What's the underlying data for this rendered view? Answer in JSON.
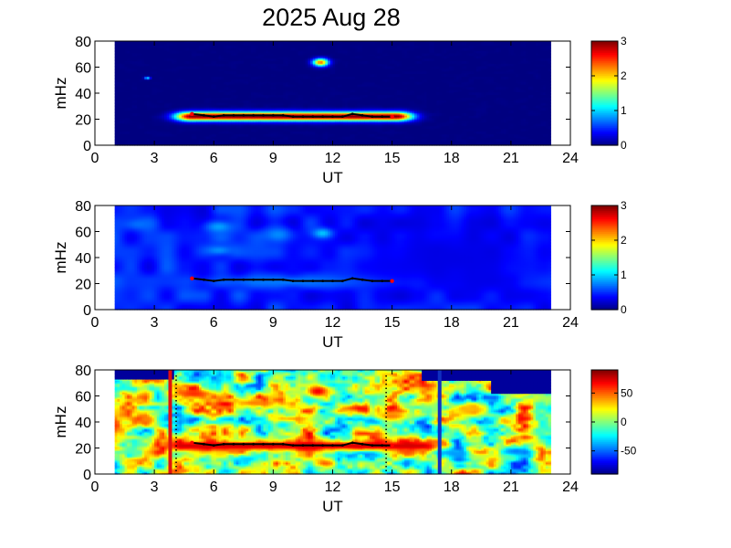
{
  "title": "2025 Aug 28",
  "colors": {
    "background": "#ffffff",
    "axes": "#000000",
    "trace": "#000000",
    "trace_endpoint": "#ff0000",
    "marker_red": "#e01010",
    "marker_blue": "#1030c0"
  },
  "chart_data": [
    {
      "type": "heatmap",
      "title": "2025 Aug 28",
      "xlabel": "UT",
      "ylabel": "mHz",
      "xlim": [
        0,
        24
      ],
      "ylim": [
        0,
        80
      ],
      "xticks": [
        0,
        3,
        6,
        9,
        12,
        15,
        18,
        21,
        24
      ],
      "yticks": [
        0,
        20,
        40,
        60,
        80
      ],
      "data_x_range": [
        1,
        23
      ],
      "colormap": "jet",
      "colorbar": {
        "min": 0,
        "max": 3,
        "ticks": [
          0,
          1,
          2,
          3
        ],
        "tick_labels": [
          "0",
          "1",
          "2",
          "3"
        ]
      },
      "background_level": 0,
      "features": [
        {
          "kind": "band",
          "x": [
            4.9,
            15.2
          ],
          "y_center": 22.5,
          "y_halfwidth": 3.5,
          "level": 3
        },
        {
          "kind": "blob",
          "x": [
            11.0,
            11.8
          ],
          "y_center": 64,
          "y_halfwidth": 3,
          "level": 2.3
        },
        {
          "kind": "blob",
          "x": [
            2.5,
            2.8
          ],
          "y_center": 52,
          "y_halfwidth": 1,
          "level": 1.2
        }
      ],
      "trace": {
        "x": [
          4.9,
          5.5,
          6.0,
          6.5,
          7.0,
          7.5,
          8.0,
          8.5,
          9.0,
          9.5,
          10.0,
          10.5,
          11.0,
          11.5,
          12.0,
          12.5,
          13.0,
          13.5,
          14.0,
          14.5,
          15.0
        ],
        "y": [
          24,
          23,
          22,
          23,
          23,
          23,
          23,
          23,
          23,
          23,
          22,
          22,
          22,
          22,
          22,
          22,
          24,
          23,
          22,
          22,
          22
        ]
      }
    },
    {
      "type": "heatmap",
      "xlabel": "UT",
      "ylabel": "mHz",
      "xlim": [
        0,
        24
      ],
      "ylim": [
        0,
        80
      ],
      "xticks": [
        0,
        3,
        6,
        9,
        12,
        15,
        18,
        21,
        24
      ],
      "yticks": [
        0,
        20,
        40,
        60,
        80
      ],
      "data_x_range": [
        1,
        23
      ],
      "colormap": "jet",
      "colorbar": {
        "min": 0,
        "max": 3,
        "ticks": [
          0,
          1,
          2,
          3
        ],
        "tick_labels": [
          "0",
          "1",
          "2",
          "3"
        ]
      },
      "background_level": 0.45,
      "features": [
        {
          "kind": "blob",
          "x": [
            11.0,
            12.0
          ],
          "y_center": 59,
          "y_halfwidth": 4,
          "level": 1.05
        },
        {
          "kind": "blob",
          "x": [
            5.5,
            7.0
          ],
          "y_center": 64,
          "y_halfwidth": 5,
          "level": 0.85
        },
        {
          "kind": "blob",
          "x": [
            5.5,
            7.0
          ],
          "y_center": 46,
          "y_halfwidth": 4,
          "level": 0.8
        },
        {
          "kind": "blob",
          "x": [
            8.5,
            10.0
          ],
          "y_center": 58,
          "y_halfwidth": 6,
          "level": 0.8
        },
        {
          "kind": "blob",
          "x": [
            1.5,
            3.0
          ],
          "y_center": 66,
          "y_halfwidth": 4,
          "level": 0.7
        },
        {
          "kind": "blob",
          "x": [
            5.0,
            15.5
          ],
          "y_center": 22,
          "y_halfwidth": 5,
          "level": 0.75
        },
        {
          "kind": "blob",
          "x": [
            13.0,
            23.0
          ],
          "y_center": 40,
          "y_halfwidth": 30,
          "level": 0.3
        }
      ],
      "trace": {
        "x": [
          4.9,
          5.5,
          6.0,
          6.5,
          7.0,
          7.5,
          8.0,
          8.5,
          9.0,
          9.5,
          10.0,
          10.5,
          11.0,
          11.5,
          12.0,
          12.5,
          13.0,
          13.5,
          14.0,
          14.5,
          15.0
        ],
        "y": [
          24,
          23,
          22,
          23,
          23,
          23,
          23,
          23,
          23,
          23,
          22,
          22,
          22,
          22,
          22,
          22,
          24,
          23,
          22,
          22,
          22
        ]
      }
    },
    {
      "type": "heatmap",
      "xlabel": "UT",
      "ylabel": "mHz",
      "xlim": [
        0,
        24
      ],
      "ylim": [
        0,
        80
      ],
      "xticks": [
        0,
        3,
        6,
        9,
        12,
        15,
        18,
        21,
        24
      ],
      "yticks": [
        0,
        20,
        40,
        60,
        80
      ],
      "data_x_range": [
        1,
        23
      ],
      "colormap": "jet",
      "colorbar": {
        "min": -90,
        "max": 90,
        "ticks": [
          50,
          0,
          -50
        ],
        "tick_labels": [
          "50",
          "0",
          "-50"
        ]
      },
      "background_level": 5,
      "features": [
        {
          "kind": "band",
          "x": [
            4.5,
            16.5
          ],
          "y_center": 22,
          "y_halfwidth": 4,
          "level": 75
        },
        {
          "kind": "blob",
          "x": [
            10.5,
            12.0
          ],
          "y_center": 64,
          "y_halfwidth": 6,
          "level": 70
        },
        {
          "kind": "blob",
          "x": [
            4.0,
            6.0
          ],
          "y_center": 62,
          "y_halfwidth": 4,
          "level": 60
        },
        {
          "kind": "blob",
          "x": [
            7.0,
            9.0
          ],
          "y_center": 55,
          "y_halfwidth": 3,
          "level": 45
        },
        {
          "kind": "blob",
          "x": [
            14.0,
            16.0
          ],
          "y_center": 45,
          "y_halfwidth": 4,
          "level": 45
        },
        {
          "kind": "blob",
          "x": [
            2.0,
            3.2
          ],
          "y_center": 42,
          "y_halfwidth": 5,
          "level": 45
        },
        {
          "kind": "blob",
          "x": [
            18.0,
            20.0
          ],
          "y_center": 50,
          "y_halfwidth": 5,
          "level": 35
        },
        {
          "kind": "blob",
          "x": [
            9.0,
            10.0
          ],
          "y_center": 38,
          "y_halfwidth": 3,
          "level": -25
        },
        {
          "kind": "blob",
          "x": [
            20.5,
            22.0
          ],
          "y_center": 18,
          "y_halfwidth": 4,
          "level": -45
        },
        {
          "kind": "blob",
          "x": [
            17.5,
            19.0
          ],
          "y_center": 16,
          "y_halfwidth": 3,
          "level": -40
        },
        {
          "kind": "blob",
          "x": [
            7.0,
            8.5
          ],
          "y_center": 12,
          "y_halfwidth": 3,
          "level": -30
        },
        {
          "kind": "region",
          "x": [
            20.0,
            23.0
          ],
          "y_min": 62,
          "y_max": 80,
          "level": -85
        },
        {
          "kind": "region",
          "x": [
            16.5,
            20.0
          ],
          "y_min": 72,
          "y_max": 80,
          "level": -85
        },
        {
          "kind": "region",
          "x": [
            1.0,
            4.0
          ],
          "y_min": 73,
          "y_max": 80,
          "level": -85
        }
      ],
      "vertical_markers": [
        {
          "x": 3.8,
          "color": "red"
        },
        {
          "x": 17.4,
          "color": "blue"
        }
      ],
      "dotted_lines": [
        4.1,
        14.7
      ],
      "trace": {
        "x": [
          4.9,
          5.5,
          6.0,
          6.5,
          7.0,
          7.5,
          8.0,
          8.5,
          9.0,
          9.5,
          10.0,
          10.5,
          11.0,
          11.5,
          12.0,
          12.5,
          13.0,
          13.5,
          14.0,
          14.5,
          15.0
        ],
        "y": [
          24,
          23,
          22,
          23,
          23,
          23,
          23,
          23,
          23,
          23,
          22,
          22,
          22,
          22,
          22,
          22,
          24,
          23,
          22,
          22,
          22
        ]
      }
    }
  ]
}
